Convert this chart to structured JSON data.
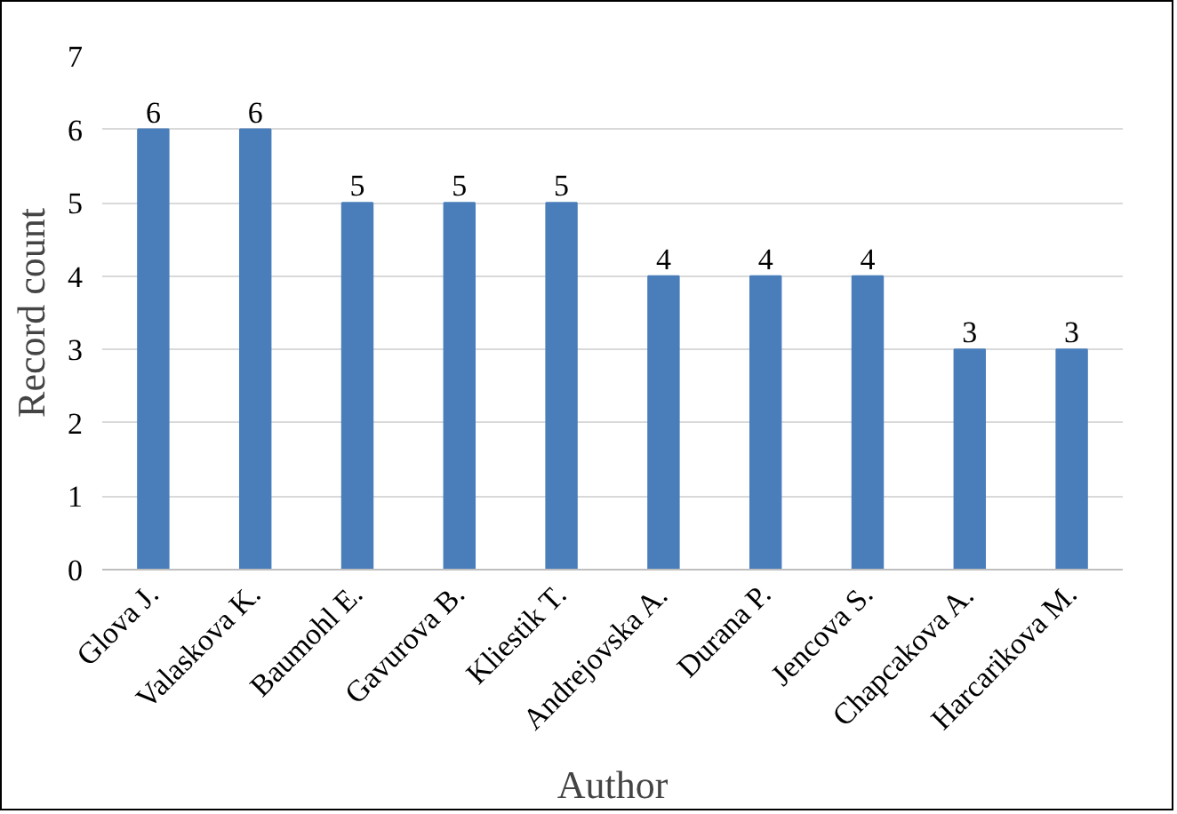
{
  "chart_data": {
    "type": "bar",
    "xlabel": "Author",
    "ylabel": "Record count",
    "categories": [
      "Glova J.",
      "Valaskova K.",
      "Baumohl E.",
      "Gavurova B.",
      "Kliestik T.",
      "Andrejovska A.",
      "Durana P.",
      "Jencova S.",
      "Chapcakova A.",
      "Harcarikova M."
    ],
    "values": [
      6,
      6,
      5,
      5,
      5,
      4,
      4,
      4,
      3,
      3
    ],
    "color": "#4a7ebb",
    "ylim": [
      0,
      7
    ],
    "yticks": [
      0,
      1,
      2,
      3,
      4,
      5,
      6,
      7
    ],
    "grid": "y",
    "data_labels": true
  }
}
